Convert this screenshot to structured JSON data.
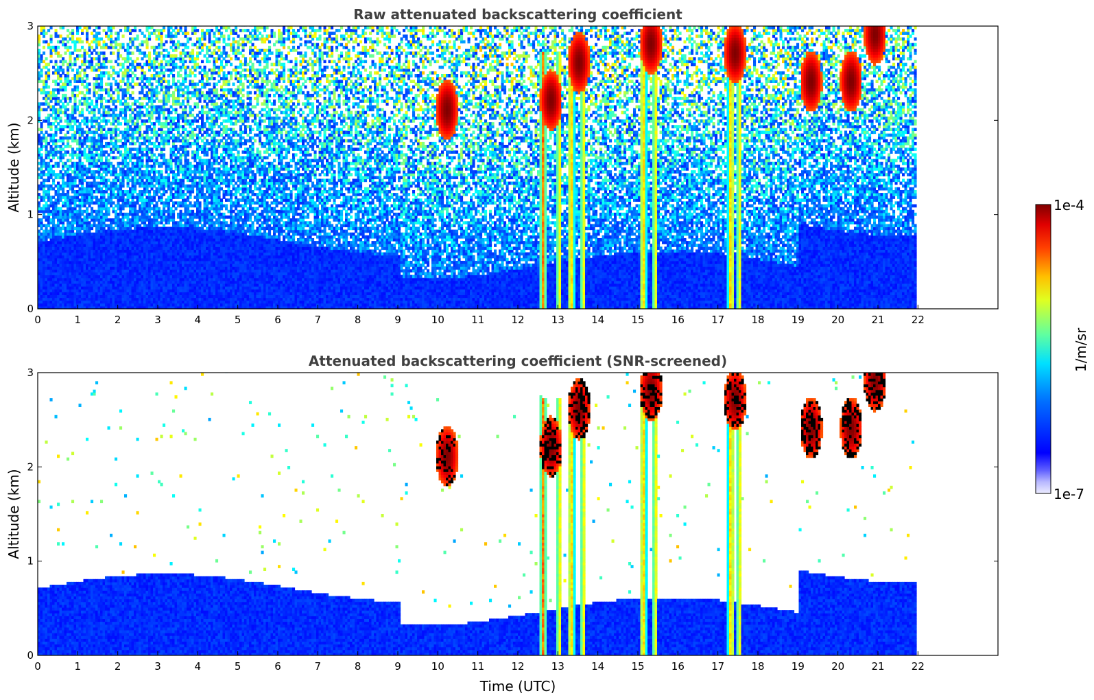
{
  "chart_data": [
    {
      "type": "heatmap",
      "title": "Raw attenuated backscattering coefficient",
      "variant": "raw",
      "xlabel": "",
      "ylabel": "Altitude (km)",
      "xlim": [
        0,
        24
      ],
      "ylim": [
        0,
        3
      ],
      "xticks": [
        "0",
        "1",
        "2",
        "3",
        "4",
        "5",
        "6",
        "7",
        "8",
        "9",
        "10",
        "11",
        "12",
        "13",
        "14",
        "15",
        "16",
        "17",
        "18",
        "19",
        "20",
        "21",
        "22"
      ],
      "yticks": [
        "0",
        "1",
        "2",
        "3"
      ],
      "data_end_hour": 21.9,
      "boundary_layer_top_km": 0.7,
      "precip_shafts_hours": [
        12.6,
        13.0,
        13.3,
        13.6,
        15.1,
        15.4,
        17.3,
        17.5
      ],
      "cloud_patches": [
        {
          "hour": 10.2,
          "alt_km": 2.1,
          "level": "very high"
        },
        {
          "hour": 12.8,
          "alt_km": 2.2,
          "level": "very high"
        },
        {
          "hour": 13.5,
          "alt_km": 2.6,
          "level": "very high"
        },
        {
          "hour": 15.3,
          "alt_km": 2.8,
          "level": "very high"
        },
        {
          "hour": 17.4,
          "alt_km": 2.7,
          "level": "very high"
        },
        {
          "hour": 19.3,
          "alt_km": 2.4,
          "level": "very high"
        },
        {
          "hour": 20.3,
          "alt_km": 2.4,
          "level": "very high"
        },
        {
          "hour": 20.9,
          "alt_km": 2.9,
          "level": "very high"
        }
      ]
    },
    {
      "type": "heatmap",
      "title": "Attenuated backscattering coefficient (SNR-screened)",
      "variant": "screened",
      "xlabel": "Time (UTC)",
      "ylabel": "Altitude (km)",
      "xlim": [
        0,
        24
      ],
      "ylim": [
        0,
        3
      ],
      "xticks": [
        "0",
        "1",
        "2",
        "3",
        "4",
        "5",
        "6",
        "7",
        "8",
        "9",
        "10",
        "11",
        "12",
        "13",
        "14",
        "15",
        "16",
        "17",
        "18",
        "19",
        "20",
        "21",
        "22"
      ],
      "yticks": [
        "0",
        "1",
        "2",
        "3"
      ],
      "data_end_hour": 21.9,
      "boundary_layer_top_km": 0.7,
      "precip_shafts_hours": [
        12.6,
        13.0,
        13.3,
        13.6,
        15.1,
        15.4,
        17.3,
        17.5
      ],
      "cloud_patches": [
        {
          "hour": 10.2,
          "alt_km": 2.1,
          "level": "very high"
        },
        {
          "hour": 12.8,
          "alt_km": 2.2,
          "level": "very high"
        },
        {
          "hour": 13.5,
          "alt_km": 2.6,
          "level": "very high"
        },
        {
          "hour": 15.3,
          "alt_km": 2.8,
          "level": "very high"
        },
        {
          "hour": 17.4,
          "alt_km": 2.7,
          "level": "very high"
        },
        {
          "hour": 19.3,
          "alt_km": 2.4,
          "level": "very high"
        },
        {
          "hour": 20.3,
          "alt_km": 2.4,
          "level": "very high"
        },
        {
          "hour": 20.9,
          "alt_km": 2.9,
          "level": "very high"
        }
      ]
    }
  ],
  "colorbar": {
    "max_label": "1e-4",
    "min_label": "1e-7",
    "unit_label": "1/m/sr",
    "colormap": "jet",
    "colors": [
      "#00008f",
      "#0000ff",
      "#0080ff",
      "#00ffff",
      "#80ff80",
      "#ffff00",
      "#ff8000",
      "#ff0000",
      "#800000"
    ],
    "light_end": [
      "#e8e8ff",
      "#b8b8ff",
      "#8080ff"
    ]
  }
}
